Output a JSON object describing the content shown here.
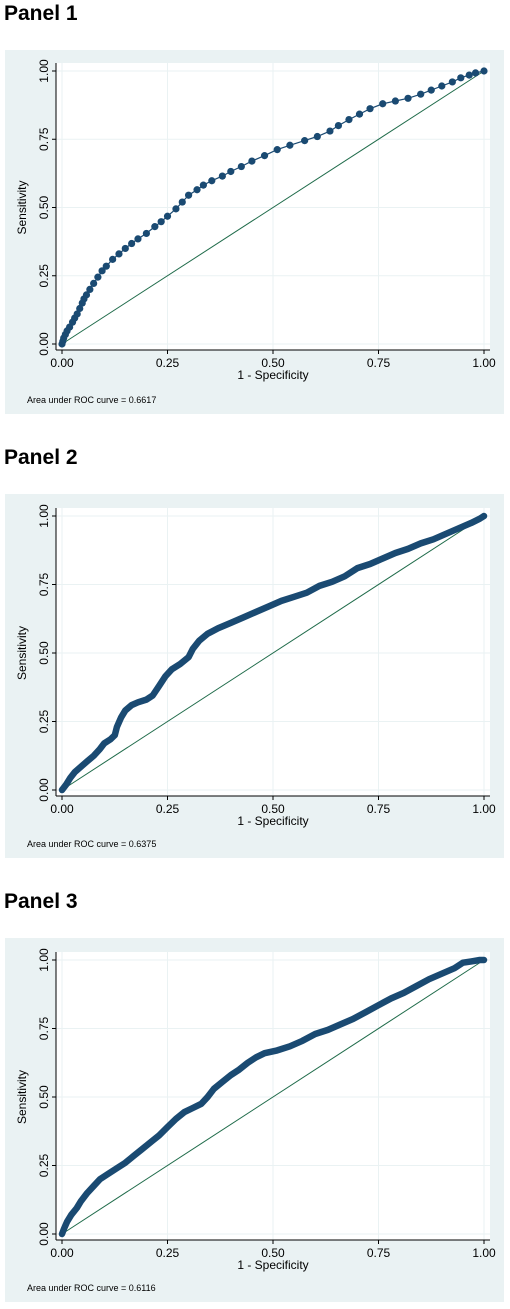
{
  "colors": {
    "curve": "#1a4a72",
    "diagonal": "#1f6b4a",
    "panel_bg": "#eaf2f3",
    "grid": "#eaf2f3"
  },
  "chart_data": [
    {
      "type": "line",
      "panel_title": "Panel 1",
      "xlabel": "1 - Specificity",
      "ylabel": "Sensitivity",
      "xlim": [
        0,
        1
      ],
      "ylim": [
        0,
        1
      ],
      "xticks": [
        "0.00",
        "0.25",
        "0.50",
        "0.75",
        "1.00"
      ],
      "yticks": [
        "0.00",
        "0.25",
        "0.50",
        "0.75",
        "1.00"
      ],
      "note": "Area under ROC curve = 0.6617",
      "markers": true,
      "series": [
        {
          "values": [
            [
              0.0,
              0.0
            ],
            [
              0.002,
              0.01
            ],
            [
              0.004,
              0.022
            ],
            [
              0.008,
              0.035
            ],
            [
              0.012,
              0.048
            ],
            [
              0.018,
              0.062
            ],
            [
              0.025,
              0.08
            ],
            [
              0.03,
              0.095
            ],
            [
              0.036,
              0.11
            ],
            [
              0.042,
              0.13
            ],
            [
              0.048,
              0.15
            ],
            [
              0.052,
              0.165
            ],
            [
              0.058,
              0.18
            ],
            [
              0.066,
              0.2
            ],
            [
              0.075,
              0.222
            ],
            [
              0.085,
              0.245
            ],
            [
              0.095,
              0.268
            ],
            [
              0.105,
              0.285
            ],
            [
              0.12,
              0.31
            ],
            [
              0.135,
              0.33
            ],
            [
              0.15,
              0.35
            ],
            [
              0.165,
              0.368
            ],
            [
              0.18,
              0.385
            ],
            [
              0.2,
              0.405
            ],
            [
              0.22,
              0.43
            ],
            [
              0.235,
              0.448
            ],
            [
              0.25,
              0.468
            ],
            [
              0.27,
              0.495
            ],
            [
              0.285,
              0.52
            ],
            [
              0.3,
              0.545
            ],
            [
              0.32,
              0.565
            ],
            [
              0.335,
              0.582
            ],
            [
              0.355,
              0.598
            ],
            [
              0.38,
              0.615
            ],
            [
              0.4,
              0.632
            ],
            [
              0.425,
              0.65
            ],
            [
              0.45,
              0.67
            ],
            [
              0.48,
              0.69
            ],
            [
              0.51,
              0.712
            ],
            [
              0.54,
              0.728
            ],
            [
              0.575,
              0.745
            ],
            [
              0.605,
              0.76
            ],
            [
              0.635,
              0.78
            ],
            [
              0.655,
              0.8
            ],
            [
              0.68,
              0.822
            ],
            [
              0.705,
              0.842
            ],
            [
              0.73,
              0.862
            ],
            [
              0.76,
              0.88
            ],
            [
              0.79,
              0.89
            ],
            [
              0.82,
              0.9
            ],
            [
              0.85,
              0.915
            ],
            [
              0.875,
              0.93
            ],
            [
              0.9,
              0.945
            ],
            [
              0.925,
              0.96
            ],
            [
              0.945,
              0.975
            ],
            [
              0.965,
              0.985
            ],
            [
              0.98,
              0.993
            ],
            [
              1.0,
              1.0
            ]
          ]
        },
        {
          "values": [
            [
              0,
              0
            ],
            [
              1,
              1
            ]
          ]
        }
      ]
    },
    {
      "type": "line",
      "panel_title": "Panel 2",
      "xlabel": "1 - Specificity",
      "ylabel": "Sensitivity",
      "xlim": [
        0,
        1
      ],
      "ylim": [
        0,
        1
      ],
      "xticks": [
        "0.00",
        "0.25",
        "0.50",
        "0.75",
        "1.00"
      ],
      "yticks": [
        "0.00",
        "0.25",
        "0.50",
        "0.75",
        "1.00"
      ],
      "note": "Area under ROC curve = 0.6375",
      "markers": false,
      "series": [
        {
          "values": [
            [
              0.0,
              0.0
            ],
            [
              0.01,
              0.02
            ],
            [
              0.02,
              0.045
            ],
            [
              0.03,
              0.065
            ],
            [
              0.045,
              0.085
            ],
            [
              0.06,
              0.105
            ],
            [
              0.075,
              0.125
            ],
            [
              0.09,
              0.15
            ],
            [
              0.1,
              0.17
            ],
            [
              0.115,
              0.185
            ],
            [
              0.125,
              0.2
            ],
            [
              0.13,
              0.23
            ],
            [
              0.14,
              0.265
            ],
            [
              0.15,
              0.29
            ],
            [
              0.165,
              0.31
            ],
            [
              0.18,
              0.32
            ],
            [
              0.2,
              0.33
            ],
            [
              0.215,
              0.345
            ],
            [
              0.23,
              0.38
            ],
            [
              0.245,
              0.415
            ],
            [
              0.26,
              0.44
            ],
            [
              0.28,
              0.46
            ],
            [
              0.3,
              0.485
            ],
            [
              0.31,
              0.515
            ],
            [
              0.325,
              0.545
            ],
            [
              0.345,
              0.57
            ],
            [
              0.37,
              0.59
            ],
            [
              0.4,
              0.61
            ],
            [
              0.43,
              0.63
            ],
            [
              0.46,
              0.65
            ],
            [
              0.49,
              0.67
            ],
            [
              0.52,
              0.69
            ],
            [
              0.55,
              0.705
            ],
            [
              0.58,
              0.72
            ],
            [
              0.61,
              0.745
            ],
            [
              0.64,
              0.76
            ],
            [
              0.67,
              0.78
            ],
            [
              0.7,
              0.81
            ],
            [
              0.73,
              0.825
            ],
            [
              0.76,
              0.845
            ],
            [
              0.79,
              0.865
            ],
            [
              0.82,
              0.88
            ],
            [
              0.85,
              0.9
            ],
            [
              0.88,
              0.915
            ],
            [
              0.91,
              0.935
            ],
            [
              0.94,
              0.955
            ],
            [
              0.97,
              0.975
            ],
            [
              0.99,
              0.99
            ],
            [
              1.0,
              1.0
            ]
          ]
        },
        {
          "values": [
            [
              0,
              0
            ],
            [
              1,
              1
            ]
          ]
        }
      ]
    },
    {
      "type": "line",
      "panel_title": "Panel 3",
      "xlabel": "1 - Specificity",
      "ylabel": "Sensitivity",
      "xlim": [
        0,
        1
      ],
      "ylim": [
        0,
        1
      ],
      "xticks": [
        "0.00",
        "0.25",
        "0.50",
        "0.75",
        "1.00"
      ],
      "yticks": [
        "0.00",
        "0.25",
        "0.50",
        "0.75",
        "1.00"
      ],
      "note": "Area under ROC curve = 0.6116",
      "markers": false,
      "series": [
        {
          "values": [
            [
              0.0,
              0.0
            ],
            [
              0.005,
              0.02
            ],
            [
              0.012,
              0.045
            ],
            [
              0.022,
              0.07
            ],
            [
              0.035,
              0.095
            ],
            [
              0.045,
              0.12
            ],
            [
              0.06,
              0.15
            ],
            [
              0.075,
              0.175
            ],
            [
              0.09,
              0.2
            ],
            [
              0.11,
              0.22
            ],
            [
              0.13,
              0.24
            ],
            [
              0.15,
              0.26
            ],
            [
              0.17,
              0.285
            ],
            [
              0.19,
              0.31
            ],
            [
              0.21,
              0.335
            ],
            [
              0.23,
              0.36
            ],
            [
              0.25,
              0.39
            ],
            [
              0.27,
              0.42
            ],
            [
              0.29,
              0.445
            ],
            [
              0.31,
              0.46
            ],
            [
              0.33,
              0.475
            ],
            [
              0.345,
              0.5
            ],
            [
              0.36,
              0.53
            ],
            [
              0.38,
              0.555
            ],
            [
              0.4,
              0.58
            ],
            [
              0.42,
              0.6
            ],
            [
              0.44,
              0.625
            ],
            [
              0.46,
              0.645
            ],
            [
              0.48,
              0.66
            ],
            [
              0.51,
              0.67
            ],
            [
              0.54,
              0.685
            ],
            [
              0.57,
              0.705
            ],
            [
              0.6,
              0.73
            ],
            [
              0.63,
              0.745
            ],
            [
              0.66,
              0.765
            ],
            [
              0.69,
              0.785
            ],
            [
              0.72,
              0.81
            ],
            [
              0.75,
              0.835
            ],
            [
              0.78,
              0.86
            ],
            [
              0.81,
              0.88
            ],
            [
              0.84,
              0.905
            ],
            [
              0.87,
              0.93
            ],
            [
              0.9,
              0.95
            ],
            [
              0.93,
              0.97
            ],
            [
              0.95,
              0.99
            ],
            [
              0.97,
              0.995
            ],
            [
              0.99,
              1.0
            ],
            [
              1.0,
              1.0
            ]
          ]
        },
        {
          "values": [
            [
              0,
              0
            ],
            [
              1,
              1
            ]
          ]
        }
      ]
    }
  ]
}
